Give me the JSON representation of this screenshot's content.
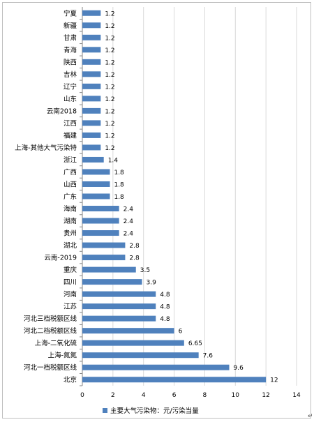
{
  "chart_data": {
    "type": "bar",
    "orientation": "horizontal",
    "categories": [
      "宁夏",
      "新疆",
      "甘肃",
      "青海",
      "陕西",
      "吉林",
      "辽宁",
      "山东",
      "云南2018",
      "江西",
      "福建",
      "上海-其他大气污染特",
      "浙江",
      "广西",
      "山西",
      "广东",
      "海南",
      "湖南",
      "贵州",
      "湖北",
      "云南-2019",
      "重庆",
      "四川",
      "河南",
      "江苏",
      "河北三档税额区线",
      "河北二档税额区线",
      "上海-二氧化硫",
      "上海-氮氮",
      "河北一档税额区线",
      "北京"
    ],
    "values": [
      1.2,
      1.2,
      1.2,
      1.2,
      1.2,
      1.2,
      1.2,
      1.2,
      1.2,
      1.2,
      1.2,
      1.2,
      1.4,
      1.8,
      1.8,
      1.8,
      2.4,
      2.4,
      2.4,
      2.8,
      2.8,
      3.5,
      3.9,
      4.8,
      4.8,
      4.8,
      6,
      6.65,
      7.6,
      9.6,
      12
    ],
    "value_labels": [
      "1.2",
      "1.2",
      "1.2",
      "1.2",
      "1.2",
      "1.2",
      "1.2",
      "1.2",
      "1.2",
      "1.2",
      "1.2",
      "1.2",
      "1.4",
      "1.8",
      "1.8",
      "1.8",
      "2.4",
      "2.4",
      "2.4",
      "2.8",
      "2.8",
      "3.5",
      "3.9",
      "4.8",
      "4.8",
      "4.8",
      "6",
      "6.65",
      "7.6",
      "9.6",
      "12"
    ],
    "xlim": [
      0,
      14
    ],
    "xticks": [
      "0",
      "2",
      "4",
      "6",
      "8",
      "10",
      "12",
      "14"
    ],
    "grid": true,
    "legend": "bottom-center",
    "series": [
      {
        "name": "主要大气污染物：元/污染当量",
        "color": "#4f81bd"
      }
    ],
    "bar_color": "#4f81bd",
    "grid_color": "#d9d9d9",
    "axis_color": "#868686"
  }
}
